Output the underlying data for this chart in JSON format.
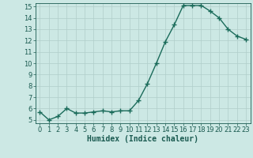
{
  "x": [
    0,
    1,
    2,
    3,
    4,
    5,
    6,
    7,
    8,
    9,
    10,
    11,
    12,
    13,
    14,
    15,
    16,
    17,
    18,
    19,
    20,
    21,
    22,
    23
  ],
  "y": [
    5.7,
    5.0,
    5.3,
    6.0,
    5.6,
    5.6,
    5.7,
    5.8,
    5.7,
    5.8,
    5.8,
    6.7,
    8.2,
    10.0,
    11.9,
    13.4,
    15.1,
    15.1,
    15.1,
    14.6,
    14.0,
    13.0,
    12.4,
    12.1
  ],
  "line_color": "#1a6b5a",
  "marker": "+",
  "marker_size": 4,
  "bg_color": "#cce8e4",
  "grid_color": "#b0ceca",
  "axis_color": "#1a5a50",
  "xlabel": "Humidex (Indice chaleur)",
  "ylim": [
    5,
    15
  ],
  "xlim": [
    -0.5,
    23.5
  ],
  "yticks": [
    5,
    6,
    7,
    8,
    9,
    10,
    11,
    12,
    13,
    14,
    15
  ],
  "xticks": [
    0,
    1,
    2,
    3,
    4,
    5,
    6,
    7,
    8,
    9,
    10,
    11,
    12,
    13,
    14,
    15,
    16,
    17,
    18,
    19,
    20,
    21,
    22,
    23
  ],
  "font_size": 6,
  "label_font_size": 7,
  "linewidth": 1.0,
  "marker_color": "#1a6b5a"
}
